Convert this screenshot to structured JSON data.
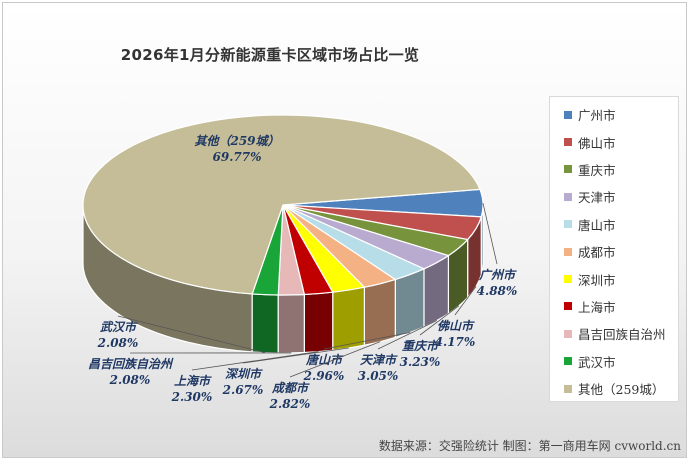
{
  "chart_data": {
    "type": "pie",
    "title": "2026年1月分新能源重卡区域市场占比一览",
    "slices": [
      {
        "label": "广州市",
        "value": 4.88,
        "value_label": "4.88%",
        "color": "#4f81bd"
      },
      {
        "label": "佛山市",
        "value": 4.17,
        "value_label": "4.17%",
        "color": "#c0504d"
      },
      {
        "label": "重庆市",
        "value": 3.23,
        "value_label": "3.23%",
        "color": "#77933c"
      },
      {
        "label": "天津市",
        "value": 3.05,
        "value_label": "3.05%",
        "color": "#b9abcf"
      },
      {
        "label": "唐山市",
        "value": 2.96,
        "value_label": "2.96%",
        "color": "#b7dde8"
      },
      {
        "label": "成都市",
        "value": 2.82,
        "value_label": "2.82%",
        "color": "#f4b183"
      },
      {
        "label": "深圳市",
        "value": 2.67,
        "value_label": "2.67%",
        "color": "#ffff00"
      },
      {
        "label": "上海市",
        "value": 2.3,
        "value_label": "2.30%",
        "color": "#c00000"
      },
      {
        "label": "昌吉回族自治州",
        "value": 2.08,
        "value_label": "2.08%",
        "color": "#e6b9b8"
      },
      {
        "label": "武汉市",
        "value": 2.08,
        "value_label": "2.08%",
        "color": "#1aa538"
      },
      {
        "label": "其他（259城）",
        "value": 69.77,
        "value_label": "69.77%",
        "color": "#c4bd97"
      }
    ],
    "legend_position": "right"
  },
  "footer": "数据来源：交强险统计   制图：第一商用车网 cvworld.cn"
}
